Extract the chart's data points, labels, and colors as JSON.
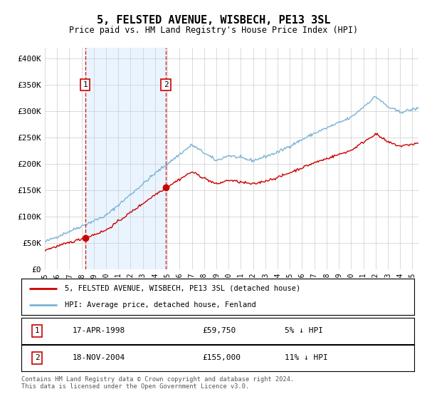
{
  "title": "5, FELSTED AVENUE, WISBECH, PE13 3SL",
  "subtitle": "Price paid vs. HM Land Registry's House Price Index (HPI)",
  "ylabel_ticks": [
    "£0",
    "£50K",
    "£100K",
    "£150K",
    "£200K",
    "£250K",
    "£300K",
    "£350K",
    "£400K"
  ],
  "ytick_values": [
    0,
    50000,
    100000,
    150000,
    200000,
    250000,
    300000,
    350000,
    400000
  ],
  "ylim": [
    0,
    420000
  ],
  "xlim_start": 1995.0,
  "xlim_end": 2025.5,
  "x_ticks": [
    1995,
    1996,
    1997,
    1998,
    1999,
    2000,
    2001,
    2002,
    2003,
    2004,
    2005,
    2006,
    2007,
    2008,
    2009,
    2010,
    2011,
    2012,
    2013,
    2014,
    2015,
    2016,
    2017,
    2018,
    2019,
    2020,
    2021,
    2022,
    2023,
    2024,
    2025
  ],
  "purchase1_date": 1998.29,
  "purchase1_price": 59750,
  "purchase2_date": 2004.88,
  "purchase2_price": 155000,
  "legend_line1": "5, FELSTED AVENUE, WISBECH, PE13 3SL (detached house)",
  "legend_line2": "HPI: Average price, detached house, Fenland",
  "footer": "Contains HM Land Registry data © Crown copyright and database right 2024.\nThis data is licensed under the Open Government Licence v3.0.",
  "red_color": "#cc0000",
  "blue_color": "#7ab3d4",
  "background_color": "#ffffff",
  "grid_color": "#cccccc",
  "vline_color": "#cc0000",
  "vline_fill": "#ddeeff"
}
